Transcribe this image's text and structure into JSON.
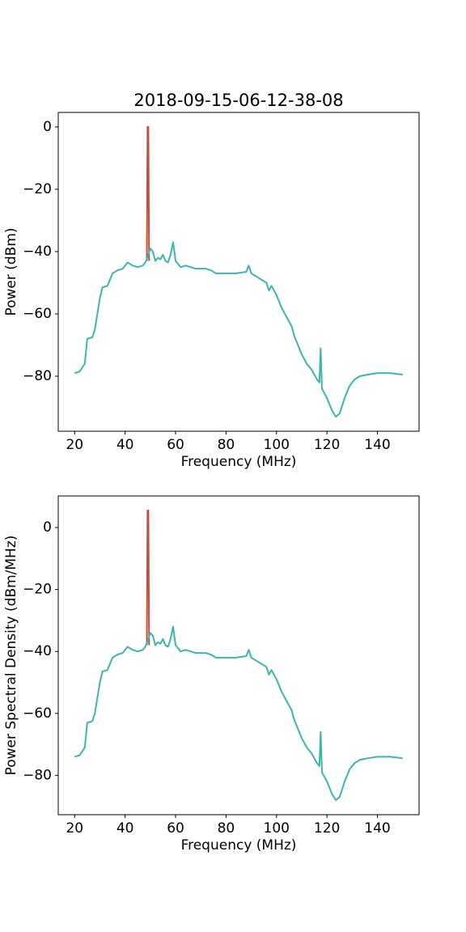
{
  "chart_data": [
    {
      "type": "line",
      "title": "2018-09-15-06-12-38-08",
      "xlabel": "Frequency (MHz)",
      "ylabel": "Power (dBm)",
      "xlim": [
        13.5,
        156.5
      ],
      "ylim": [
        -97.65,
        4.65
      ],
      "xticks": [
        20,
        40,
        60,
        80,
        100,
        120,
        140
      ],
      "yticks": [
        0,
        {
          "value": -20,
          "label": "−20"
        },
        {
          "value": -40,
          "label": "−40"
        },
        {
          "value": -60,
          "label": "−60"
        },
        {
          "value": -80,
          "label": "−80"
        }
      ],
      "series": [
        {
          "color": "#c44e3b",
          "x": [
            48.6,
            48.9,
            49.2,
            49.5
          ],
          "values": [
            -43,
            0,
            0,
            -43
          ]
        },
        {
          "color": "#3bb5b0",
          "x": [
            20,
            22,
            24,
            25,
            27,
            28,
            29,
            30,
            31,
            33,
            35,
            37,
            39,
            40,
            41,
            43,
            45,
            47,
            48,
            49,
            50,
            51,
            52,
            53,
            54,
            55,
            56,
            57,
            58,
            59,
            60,
            62,
            64,
            66,
            68,
            70,
            72,
            74,
            76,
            78,
            80,
            84,
            88,
            89,
            90,
            92,
            94,
            96,
            97,
            98,
            100,
            102,
            104,
            106,
            107,
            108,
            110,
            112,
            114,
            116,
            117,
            117.5,
            118,
            120,
            122,
            123.5,
            125,
            127,
            129,
            131,
            133,
            136,
            140,
            145,
            150
          ],
          "values": [
            -79,
            -78.5,
            -76,
            -68,
            -67.5,
            -65,
            -60,
            -55,
            -51.5,
            -51,
            -47,
            -46,
            -45.5,
            -44.5,
            -43.5,
            -44.5,
            -45,
            -44.5,
            -43.5,
            -41.5,
            -39,
            -40,
            -43,
            -42,
            -42.5,
            -41,
            -43,
            -43.5,
            -41,
            -37,
            -43,
            -45,
            -44.5,
            -45,
            -45.5,
            -45.5,
            -45.5,
            -46,
            -47,
            -47,
            -47,
            -47,
            -46.5,
            -44.5,
            -47,
            -48,
            -49,
            -50,
            -52.5,
            -51,
            -54,
            -58,
            -61,
            -64,
            -67,
            -69,
            -73,
            -76,
            -78,
            -81,
            -82,
            -71,
            -84,
            -87,
            -91,
            -93,
            -92,
            -87,
            -83,
            -81,
            -80,
            -79.5,
            -79,
            -79,
            -79.5
          ]
        }
      ]
    },
    {
      "type": "line",
      "xlabel": "Frequency (MHz)",
      "ylabel": "Power Spectral Density (dBm/MHz)",
      "xlim": [
        13.5,
        156.5
      ],
      "ylim": [
        -92.7,
        10.2
      ],
      "xticks": [
        20,
        40,
        60,
        80,
        100,
        120,
        140
      ],
      "yticks": [
        0,
        {
          "value": -20,
          "label": "−20"
        },
        {
          "value": -40,
          "label": "−40"
        },
        {
          "value": -60,
          "label": "−60"
        },
        {
          "value": -80,
          "label": "−80"
        }
      ],
      "series": [
        {
          "color": "#c44e3b",
          "x": [
            48.6,
            48.9,
            49.2,
            49.5
          ],
          "values": [
            -38,
            5.5,
            5.5,
            -38
          ]
        },
        {
          "color": "#3bb5b0",
          "x": [
            20,
            22,
            24,
            25,
            27,
            28,
            29,
            30,
            31,
            33,
            35,
            37,
            39,
            40,
            41,
            43,
            45,
            47,
            48,
            49,
            50,
            51,
            52,
            53,
            54,
            55,
            56,
            57,
            58,
            59,
            60,
            62,
            64,
            66,
            68,
            70,
            72,
            74,
            76,
            78,
            80,
            84,
            88,
            89,
            90,
            92,
            94,
            96,
            97,
            98,
            100,
            102,
            104,
            106,
            107,
            108,
            110,
            112,
            114,
            116,
            117,
            117.5,
            118,
            120,
            122,
            123.5,
            125,
            127,
            129,
            131,
            133,
            136,
            140,
            145,
            150
          ],
          "values": [
            -74,
            -73.5,
            -71,
            -63,
            -62.5,
            -60,
            -55,
            -50,
            -46.5,
            -46,
            -42,
            -41,
            -40.5,
            -39.5,
            -38.5,
            -39.5,
            -40,
            -39.5,
            -38.5,
            -36.5,
            -34,
            -35,
            -38,
            -37,
            -37.5,
            -36,
            -38,
            -38.5,
            -36,
            -32,
            -38,
            -40,
            -39.5,
            -40,
            -40.5,
            -40.5,
            -40.5,
            -41,
            -42,
            -42,
            -42,
            -42,
            -41.5,
            -39.5,
            -42,
            -43,
            -44,
            -45,
            -47.5,
            -46,
            -49,
            -53,
            -56,
            -59,
            -62,
            -64,
            -68,
            -71,
            -73,
            -76,
            -77,
            -66,
            -79,
            -82,
            -86,
            -88,
            -87,
            -82,
            -78,
            -76,
            -75,
            -74.5,
            -74,
            -74,
            -74.5
          ]
        }
      ]
    }
  ]
}
